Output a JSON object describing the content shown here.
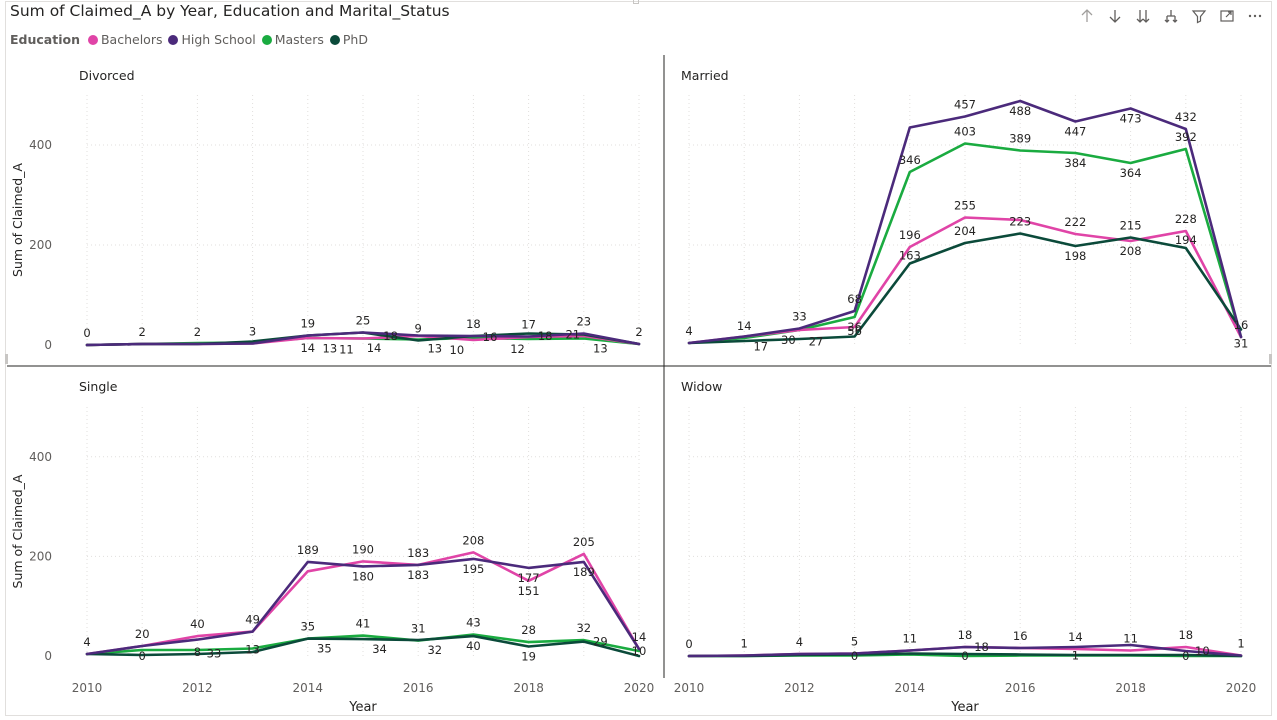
{
  "title": "Sum of Claimed_A by Year, Education and Marital_Status",
  "legend": {
    "title": "Education",
    "items": [
      {
        "label": "Bachelors",
        "color": "#e044a7"
      },
      {
        "label": "High School",
        "color": "#4b2a7b"
      },
      {
        "label": "Masters",
        "color": "#1aab40"
      },
      {
        "label": "PhD",
        "color": "#0b4a3a"
      }
    ]
  },
  "toolbar": {
    "icons": [
      "drill-up-icon",
      "drill-down-icon",
      "expand-next-level-icon",
      "expand-hierarchy-icon",
      "filter-icon",
      "focus-mode-icon",
      "more-options-icon"
    ]
  },
  "chart_data": {
    "type": "line",
    "x_label": "Year",
    "y_label": "Sum of Claimed_A",
    "x_ticks": [
      2010,
      2012,
      2014,
      2016,
      2018,
      2020
    ],
    "y_ticks": [
      0,
      200,
      400
    ],
    "xlim": [
      2010,
      2020
    ],
    "ylim": [
      0,
      500
    ],
    "grid": true,
    "legend_position": "top-left",
    "x": [
      2010,
      2011,
      2012,
      2013,
      2014,
      2015,
      2016,
      2017,
      2018,
      2019,
      2020
    ],
    "panels": [
      {
        "name": "Divorced",
        "series": [
          {
            "name": "Bachelors",
            "values": [
              0,
              2,
              2,
              3,
              14,
              13,
              18,
              10,
              16,
              18,
              2
            ]
          },
          {
            "name": "High School",
            "values": [
              0,
              2,
              2,
              3,
              19,
              25,
              19,
              18,
              17,
              23,
              2
            ]
          },
          {
            "name": "Masters",
            "values": [
              0,
              2,
              4,
              5,
              14,
              13,
              11,
              14,
              12,
              13,
              2
            ]
          },
          {
            "name": "PhD",
            "values": [
              0,
              2,
              2,
              7,
              19,
              25,
              9,
              18,
              23,
              21,
              2
            ]
          }
        ],
        "labels": [
          {
            "x": 2010,
            "y": 0,
            "text": "0",
            "pos": "above"
          },
          {
            "x": 2011,
            "y": 2,
            "text": "2",
            "pos": "above"
          },
          {
            "x": 2012,
            "y": 2,
            "text": "2",
            "pos": "above"
          },
          {
            "x": 2013,
            "y": 3,
            "text": "3",
            "pos": "above"
          },
          {
            "x": 2014,
            "y": 19,
            "text": "19",
            "pos": "above"
          },
          {
            "x": 2014,
            "y": 14,
            "text": "14",
            "pos": "below"
          },
          {
            "x": 2014.4,
            "y": 13,
            "text": "13",
            "pos": "below"
          },
          {
            "x": 2015,
            "y": 25,
            "text": "25",
            "pos": "above"
          },
          {
            "x": 2014.7,
            "y": 11,
            "text": "11",
            "pos": "below"
          },
          {
            "x": 2015.2,
            "y": 14,
            "text": "14",
            "pos": "below"
          },
          {
            "x": 2015.5,
            "y": 18,
            "text": "18",
            "pos": "mid"
          },
          {
            "x": 2016,
            "y": 9,
            "text": "9",
            "pos": "above"
          },
          {
            "x": 2016.3,
            "y": 13,
            "text": "13",
            "pos": "below"
          },
          {
            "x": 2016.7,
            "y": 10,
            "text": "10",
            "pos": "below"
          },
          {
            "x": 2017,
            "y": 18,
            "text": "18",
            "pos": "above"
          },
          {
            "x": 2017.3,
            "y": 16,
            "text": "16",
            "pos": "mid"
          },
          {
            "x": 2017.8,
            "y": 12,
            "text": "12",
            "pos": "below"
          },
          {
            "x": 2018,
            "y": 17,
            "text": "17",
            "pos": "above"
          },
          {
            "x": 2018.3,
            "y": 18,
            "text": "18",
            "pos": "mid"
          },
          {
            "x": 2019,
            "y": 23,
            "text": "23",
            "pos": "above"
          },
          {
            "x": 2018.8,
            "y": 21,
            "text": "21",
            "pos": "mid"
          },
          {
            "x": 2019.3,
            "y": 13,
            "text": "13",
            "pos": "below"
          },
          {
            "x": 2020,
            "y": 2,
            "text": "2",
            "pos": "above"
          }
        ]
      },
      {
        "name": "Married",
        "series": [
          {
            "name": "Bachelors",
            "values": [
              4,
              17,
              30,
              36,
              196,
              255,
              250,
              222,
              208,
              228,
              16
            ]
          },
          {
            "name": "High School",
            "values": [
              4,
              17,
              33,
              68,
              435,
              457,
              488,
              447,
              473,
              432,
              16
            ]
          },
          {
            "name": "Masters",
            "values": [
              4,
              14,
              30,
              56,
              346,
              403,
              389,
              384,
              364,
              392,
              16
            ]
          },
          {
            "name": "PhD",
            "values": [
              4,
              8,
              12,
              17,
              163,
              204,
              223,
              198,
              215,
              194,
              31
            ]
          }
        ],
        "labels": [
          {
            "x": 2010,
            "y": 4,
            "text": "4",
            "pos": "above"
          },
          {
            "x": 2011,
            "y": 14,
            "text": "14",
            "pos": "above"
          },
          {
            "x": 2011.3,
            "y": 17,
            "text": "17",
            "pos": "below"
          },
          {
            "x": 2011.8,
            "y": 30,
            "text": "30",
            "pos": "below"
          },
          {
            "x": 2012,
            "y": 33,
            "text": "33",
            "pos": "above"
          },
          {
            "x": 2012.3,
            "y": 27,
            "text": "27",
            "pos": "below"
          },
          {
            "x": 2013,
            "y": 68,
            "text": "68",
            "pos": "above"
          },
          {
            "x": 2013,
            "y": 36,
            "text": "36",
            "pos": "mid"
          },
          {
            "x": 2013,
            "y": 56,
            "text": "56",
            "pos": "below_far"
          },
          {
            "x": 2014,
            "y": 346,
            "text": "346",
            "pos": "above"
          },
          {
            "x": 2014,
            "y": 196,
            "text": "196",
            "pos": "above"
          },
          {
            "x": 2014,
            "y": 163,
            "text": "163",
            "pos": "above_near"
          },
          {
            "x": 2015,
            "y": 457,
            "text": "457",
            "pos": "above"
          },
          {
            "x": 2015,
            "y": 403,
            "text": "403",
            "pos": "above"
          },
          {
            "x": 2015,
            "y": 255,
            "text": "255",
            "pos": "above"
          },
          {
            "x": 2015,
            "y": 204,
            "text": "204",
            "pos": "above"
          },
          {
            "x": 2016,
            "y": 488,
            "text": "488",
            "pos": "below"
          },
          {
            "x": 2016,
            "y": 389,
            "text": "389",
            "pos": "above"
          },
          {
            "x": 2016,
            "y": 223,
            "text": "223",
            "pos": "above"
          },
          {
            "x": 2017,
            "y": 447,
            "text": "447",
            "pos": "below"
          },
          {
            "x": 2017,
            "y": 384,
            "text": "384",
            "pos": "below"
          },
          {
            "x": 2017,
            "y": 222,
            "text": "222",
            "pos": "above"
          },
          {
            "x": 2017,
            "y": 198,
            "text": "198",
            "pos": "below"
          },
          {
            "x": 2018,
            "y": 473,
            "text": "473",
            "pos": "below"
          },
          {
            "x": 2018,
            "y": 364,
            "text": "364",
            "pos": "below"
          },
          {
            "x": 2018,
            "y": 215,
            "text": "215",
            "pos": "above"
          },
          {
            "x": 2018,
            "y": 208,
            "text": "208",
            "pos": "below"
          },
          {
            "x": 2019,
            "y": 432,
            "text": "432",
            "pos": "above"
          },
          {
            "x": 2019,
            "y": 392,
            "text": "392",
            "pos": "above"
          },
          {
            "x": 2019,
            "y": 228,
            "text": "228",
            "pos": "above"
          },
          {
            "x": 2019,
            "y": 194,
            "text": "194",
            "pos": "above_near"
          },
          {
            "x": 2020,
            "y": 16,
            "text": "16",
            "pos": "above"
          },
          {
            "x": 2020,
            "y": 31,
            "text": "31",
            "pos": "below_far"
          }
        ]
      },
      {
        "name": "Single",
        "series": [
          {
            "name": "Bachelors",
            "values": [
              4,
              20,
              40,
              49,
              170,
              190,
              183,
              208,
              151,
              205,
              14
            ]
          },
          {
            "name": "High School",
            "values": [
              4,
              20,
              33,
              49,
              189,
              180,
              183,
              195,
              177,
              189,
              14
            ]
          },
          {
            "name": "Masters",
            "values": [
              4,
              12,
              12,
              15,
              35,
              41,
              31,
              43,
              28,
              32,
              10
            ]
          },
          {
            "name": "PhD",
            "values": [
              4,
              2,
              4,
              8,
              35,
              34,
              32,
              40,
              19,
              29,
              0
            ]
          }
        ],
        "labels": [
          {
            "x": 2010,
            "y": 4,
            "text": "4",
            "pos": "above"
          },
          {
            "x": 2011,
            "y": 20,
            "text": "20",
            "pos": "above"
          },
          {
            "x": 2011,
            "y": 0,
            "text": "0",
            "pos": "mid"
          },
          {
            "x": 2012,
            "y": 40,
            "text": "40",
            "pos": "above"
          },
          {
            "x": 2012,
            "y": 8,
            "text": "8",
            "pos": "mid"
          },
          {
            "x": 2012.3,
            "y": 33,
            "text": "33",
            "pos": "below_far"
          },
          {
            "x": 2013,
            "y": 49,
            "text": "49",
            "pos": "above"
          },
          {
            "x": 2013,
            "y": 13,
            "text": "13",
            "pos": "mid"
          },
          {
            "x": 2014,
            "y": 189,
            "text": "189",
            "pos": "above"
          },
          {
            "x": 2014,
            "y": 35,
            "text": "35",
            "pos": "above"
          },
          {
            "x": 2014.3,
            "y": 35,
            "text": "35",
            "pos": "below"
          },
          {
            "x": 2015,
            "y": 190,
            "text": "190",
            "pos": "above"
          },
          {
            "x": 2015,
            "y": 180,
            "text": "180",
            "pos": "below"
          },
          {
            "x": 2015,
            "y": 41,
            "text": "41",
            "pos": "above"
          },
          {
            "x": 2015.3,
            "y": 34,
            "text": "34",
            "pos": "below"
          },
          {
            "x": 2016,
            "y": 183,
            "text": "183",
            "pos": "above"
          },
          {
            "x": 2016,
            "y": 183,
            "text": "183",
            "pos": "below"
          },
          {
            "x": 2016,
            "y": 31,
            "text": "31",
            "pos": "above"
          },
          {
            "x": 2016.3,
            "y": 32,
            "text": "32",
            "pos": "below"
          },
          {
            "x": 2017,
            "y": 208,
            "text": "208",
            "pos": "above"
          },
          {
            "x": 2017,
            "y": 195,
            "text": "195",
            "pos": "below"
          },
          {
            "x": 2017,
            "y": 43,
            "text": "43",
            "pos": "above"
          },
          {
            "x": 2017,
            "y": 40,
            "text": "40",
            "pos": "below"
          },
          {
            "x": 2018,
            "y": 177,
            "text": "177",
            "pos": "below"
          },
          {
            "x": 2018,
            "y": 151,
            "text": "151",
            "pos": "below"
          },
          {
            "x": 2018,
            "y": 28,
            "text": "28",
            "pos": "above"
          },
          {
            "x": 2018,
            "y": 19,
            "text": "19",
            "pos": "below"
          },
          {
            "x": 2019,
            "y": 205,
            "text": "205",
            "pos": "above"
          },
          {
            "x": 2019,
            "y": 189,
            "text": "189",
            "pos": "below"
          },
          {
            "x": 2019,
            "y": 32,
            "text": "32",
            "pos": "above"
          },
          {
            "x": 2019.3,
            "y": 29,
            "text": "29",
            "pos": "mid"
          },
          {
            "x": 2020,
            "y": 14,
            "text": "14",
            "pos": "above"
          },
          {
            "x": 2020,
            "y": 10,
            "text": "10",
            "pos": "mid"
          }
        ]
      },
      {
        "name": "Widow",
        "series": [
          {
            "name": "Bachelors",
            "values": [
              0,
              1,
              4,
              5,
              11,
              18,
              16,
              14,
              11,
              18,
              1
            ]
          },
          {
            "name": "High School",
            "values": [
              0,
              1,
              4,
              5,
              11,
              18,
              16,
              18,
              22,
              10,
              1
            ]
          },
          {
            "name": "Masters",
            "values": [
              0,
              0,
              1,
              1,
              3,
              0,
              1,
              1,
              1,
              0,
              0
            ]
          },
          {
            "name": "PhD",
            "values": [
              0,
              0,
              2,
              3,
              5,
              4,
              3,
              2,
              2,
              2,
              0
            ]
          }
        ],
        "labels": [
          {
            "x": 2010,
            "y": 0,
            "text": "0",
            "pos": "above"
          },
          {
            "x": 2011,
            "y": 1,
            "text": "1",
            "pos": "above"
          },
          {
            "x": 2012,
            "y": 4,
            "text": "4",
            "pos": "above"
          },
          {
            "x": 2013,
            "y": 5,
            "text": "5",
            "pos": "above"
          },
          {
            "x": 2013,
            "y": 0,
            "text": "0",
            "pos": "mid"
          },
          {
            "x": 2014,
            "y": 11,
            "text": "11",
            "pos": "above"
          },
          {
            "x": 2015,
            "y": 18,
            "text": "18",
            "pos": "above"
          },
          {
            "x": 2015,
            "y": 0,
            "text": "0",
            "pos": "mid"
          },
          {
            "x": 2015.3,
            "y": 18,
            "text": "18",
            "pos": "mid"
          },
          {
            "x": 2016,
            "y": 16,
            "text": "16",
            "pos": "above"
          },
          {
            "x": 2017,
            "y": 14,
            "text": "14",
            "pos": "above"
          },
          {
            "x": 2017,
            "y": 1,
            "text": "1",
            "pos": "mid"
          },
          {
            "x": 2018,
            "y": 11,
            "text": "11",
            "pos": "above"
          },
          {
            "x": 2019,
            "y": 18,
            "text": "18",
            "pos": "above"
          },
          {
            "x": 2019,
            "y": 0,
            "text": "0",
            "pos": "mid"
          },
          {
            "x": 2019.3,
            "y": 10,
            "text": "10",
            "pos": "mid"
          },
          {
            "x": 2020,
            "y": 1,
            "text": "1",
            "pos": "above"
          }
        ]
      }
    ]
  }
}
